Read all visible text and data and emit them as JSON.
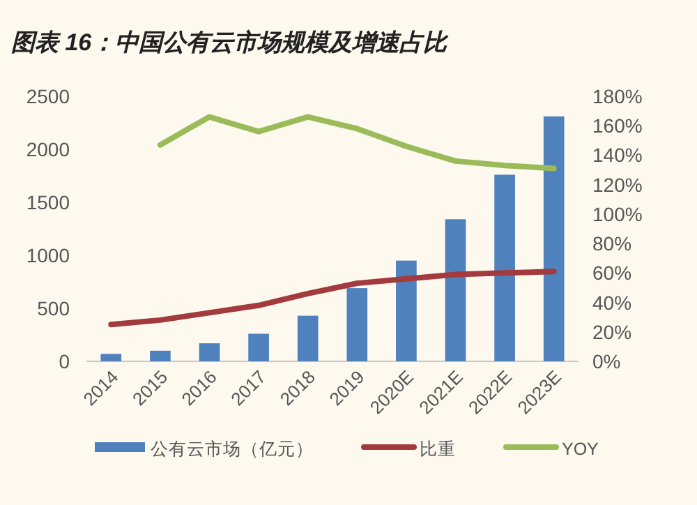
{
  "chart_data": {
    "type": "bar",
    "title": "图表 16：中国公有云市场规模及增速占比",
    "categories": [
      "2014",
      "2015",
      "2016",
      "2017",
      "2018",
      "2019",
      "2020E",
      "2021E",
      "2022E",
      "2023E"
    ],
    "series": [
      {
        "name": "公有云市场（亿元）",
        "color": "#4f81bd",
        "values": [
          70,
          100,
          170,
          260,
          430,
          690,
          950,
          1340,
          1760,
          2310
        ]
      },
      {
        "name": "比重",
        "type": "line",
        "axis": "y2",
        "color": "#a33a3d",
        "values": [
          25,
          28,
          33,
          38,
          46,
          53,
          56,
          59,
          60,
          61
        ]
      },
      {
        "name": "YOY",
        "type": "line",
        "axis": "y2",
        "color": "#9bbb59",
        "values": [
          null,
          147,
          166,
          156,
          166,
          158,
          146,
          136,
          133,
          131
        ]
      }
    ],
    "ylim": [
      0,
      2500
    ],
    "yticks": [
      0,
      500,
      1000,
      1500,
      2000,
      2500
    ],
    "y2lim": [
      0,
      180
    ],
    "y2ticks": [
      {
        "value": 0,
        "label": "0%"
      },
      {
        "value": 20,
        "label": "20%"
      },
      {
        "value": 40,
        "label": "40%"
      },
      {
        "value": 60,
        "label": "60%"
      },
      {
        "value": 80,
        "label": "80%"
      },
      {
        "value": 100,
        "label": "100%"
      },
      {
        "value": 120,
        "label": "120%"
      },
      {
        "value": 140,
        "label": "140%"
      },
      {
        "value": 160,
        "label": "160%"
      },
      {
        "value": 180,
        "label": "180%"
      }
    ],
    "legend": "bottom",
    "grid": false,
    "marker": "none",
    "line_style": "solid"
  }
}
